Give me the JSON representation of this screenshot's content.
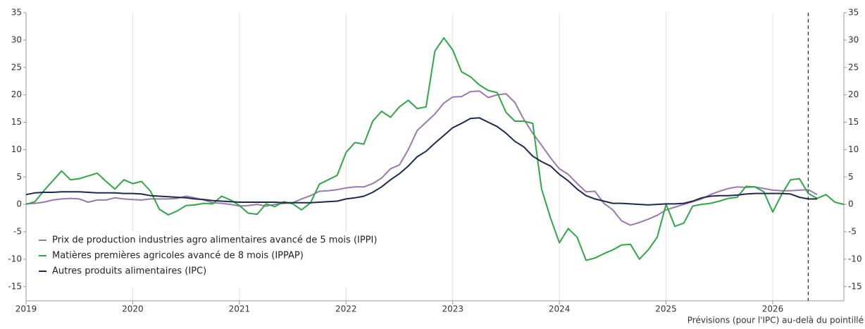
{
  "chart_data": {
    "type": "line",
    "annotation": "Prévisions (pour l'IPC) au-delà du pointillé",
    "x": [
      2019,
      2019.083,
      2019.167,
      2019.25,
      2019.333,
      2019.417,
      2019.5,
      2019.583,
      2019.667,
      2019.75,
      2019.833,
      2019.917,
      2020,
      2020.083,
      2020.167,
      2020.25,
      2020.333,
      2020.417,
      2020.5,
      2020.583,
      2020.667,
      2020.75,
      2020.833,
      2020.917,
      2021,
      2021.083,
      2021.167,
      2021.25,
      2021.333,
      2021.417,
      2021.5,
      2021.583,
      2021.667,
      2021.75,
      2021.833,
      2021.917,
      2022,
      2022.083,
      2022.167,
      2022.25,
      2022.333,
      2022.417,
      2022.5,
      2022.583,
      2022.667,
      2022.75,
      2022.833,
      2022.917,
      2023,
      2023.083,
      2023.167,
      2023.25,
      2023.333,
      2023.417,
      2023.5,
      2023.583,
      2023.667,
      2023.75,
      2023.833,
      2023.917,
      2024,
      2024.083,
      2024.167,
      2024.25,
      2024.333,
      2024.417,
      2024.5,
      2024.583,
      2024.667,
      2024.75,
      2024.833,
      2024.917,
      2025,
      2025.083,
      2025.167,
      2025.25,
      2025.333,
      2025.417,
      2025.5,
      2025.583,
      2025.667,
      2025.75,
      2025.833,
      2025.917,
      2026,
      2026.083,
      2026.167,
      2026.25,
      2026.333,
      2026.417,
      2026.5,
      2026.583,
      2026.667
    ],
    "series": [
      {
        "name": "Prix de production industries agro alimentaires avancé de 5 mois (IPPI)",
        "color": "#9b77b4",
        "values": [
          0.1,
          0.2,
          0.4,
          0.8,
          1.0,
          1.1,
          1.0,
          0.4,
          0.8,
          0.8,
          1.2,
          1.0,
          0.9,
          0.8,
          1.0,
          1.0,
          1.0,
          1.1,
          1.5,
          1.2,
          0.8,
          0.3,
          0.2,
          0.0,
          -0.3,
          -0.2,
          0.0,
          -0.3,
          0.0,
          0.2,
          0.3,
          1.0,
          1.6,
          2.4,
          2.5,
          2.7,
          3.0,
          3.2,
          3.2,
          3.8,
          4.8,
          6.5,
          7.2,
          10.0,
          13.5,
          15.0,
          16.5,
          18.5,
          19.6,
          19.7,
          20.6,
          20.7,
          19.5,
          20.0,
          20.2,
          18.6,
          15.5,
          13.0,
          10.8,
          8.5,
          6.5,
          5.5,
          3.8,
          2.3,
          2.4,
          0.2,
          -1.0,
          -3.0,
          -3.8,
          -3.3,
          -2.7,
          -2.0,
          -1.0,
          -0.5,
          0.0,
          0.5,
          1.0,
          1.8,
          2.4,
          2.9,
          3.2,
          3.1,
          3.2,
          2.9,
          2.6,
          2.5,
          2.5,
          2.6,
          2.7,
          1.8,
          null,
          null,
          null
        ]
      },
      {
        "name": "Matières premières agricoles avancé de 8 mois (IPPAP)",
        "color": "#2ea844",
        "values": [
          0.0,
          0.5,
          2.5,
          4.3,
          6.1,
          4.5,
          4.7,
          5.2,
          5.7,
          4.2,
          2.8,
          4.5,
          3.8,
          4.2,
          2.4,
          -0.9,
          -1.9,
          -1.2,
          -0.2,
          -0.1,
          0.2,
          0.1,
          1.5,
          0.8,
          -0.2,
          -1.6,
          -1.8,
          0.1,
          -0.4,
          0.5,
          0.1,
          -1.0,
          0.3,
          3.7,
          4.5,
          5.3,
          9.5,
          11.3,
          11.0,
          15.2,
          17.0,
          15.9,
          17.8,
          19.0,
          17.5,
          17.8,
          28.0,
          30.4,
          28.2,
          24.2,
          23.3,
          21.8,
          20.8,
          20.4,
          16.8,
          15.2,
          15.2,
          14.8,
          2.8,
          -2.5,
          -7.0,
          -4.4,
          -6.0,
          -10.2,
          -9.8,
          -9.0,
          -8.3,
          -7.4,
          -7.3,
          -10.0,
          -8.3,
          -6.0,
          0.0,
          -4.0,
          -3.4,
          -0.3,
          0.0,
          0.2,
          0.6,
          1.1,
          1.3,
          3.3,
          3.2,
          2.3,
          -1.4,
          1.8,
          4.5,
          4.7,
          2.0,
          1.1,
          1.8,
          0.4,
          0.0
        ]
      },
      {
        "name": "Autres produits alimentaires (IPC)",
        "color": "#1c2a4e",
        "values": [
          1.8,
          2.1,
          2.2,
          2.2,
          2.3,
          2.3,
          2.3,
          2.2,
          2.1,
          2.1,
          2.1,
          2.0,
          2.0,
          1.9,
          1.6,
          1.5,
          1.4,
          1.3,
          1.2,
          1.0,
          0.9,
          0.7,
          0.6,
          0.5,
          0.4,
          0.4,
          0.4,
          0.4,
          0.4,
          0.3,
          0.3,
          0.3,
          0.3,
          0.4,
          0.5,
          0.6,
          1.0,
          1.2,
          1.5,
          2.2,
          3.2,
          4.5,
          5.6,
          7.0,
          8.7,
          9.7,
          11.2,
          12.6,
          14.0,
          14.8,
          15.7,
          15.8,
          15.0,
          14.2,
          13.0,
          11.5,
          10.5,
          8.8,
          7.8,
          7.0,
          5.5,
          4.3,
          2.8,
          1.6,
          1.0,
          0.6,
          0.2,
          0.2,
          0.1,
          0.0,
          -0.1,
          0.0,
          0.1,
          0.1,
          0.2,
          0.6,
          1.2,
          1.5,
          1.6,
          1.6,
          1.7,
          1.9,
          2.0,
          2.0,
          2.0,
          2.0,
          1.9,
          1.3,
          1.0,
          1.0,
          null,
          null,
          null
        ]
      }
    ],
    "xlim": [
      2019,
      2026.667
    ],
    "xticks": [
      2019,
      2020,
      2021,
      2022,
      2023,
      2024,
      2025,
      2026
    ],
    "ylim": [
      -17.6,
      35
    ],
    "yticks": [
      -15,
      -10,
      -5,
      0,
      5,
      10,
      15,
      20,
      25,
      30,
      35
    ],
    "forecast_line_x": 2026.333,
    "grid": true,
    "legend": "lower left"
  }
}
